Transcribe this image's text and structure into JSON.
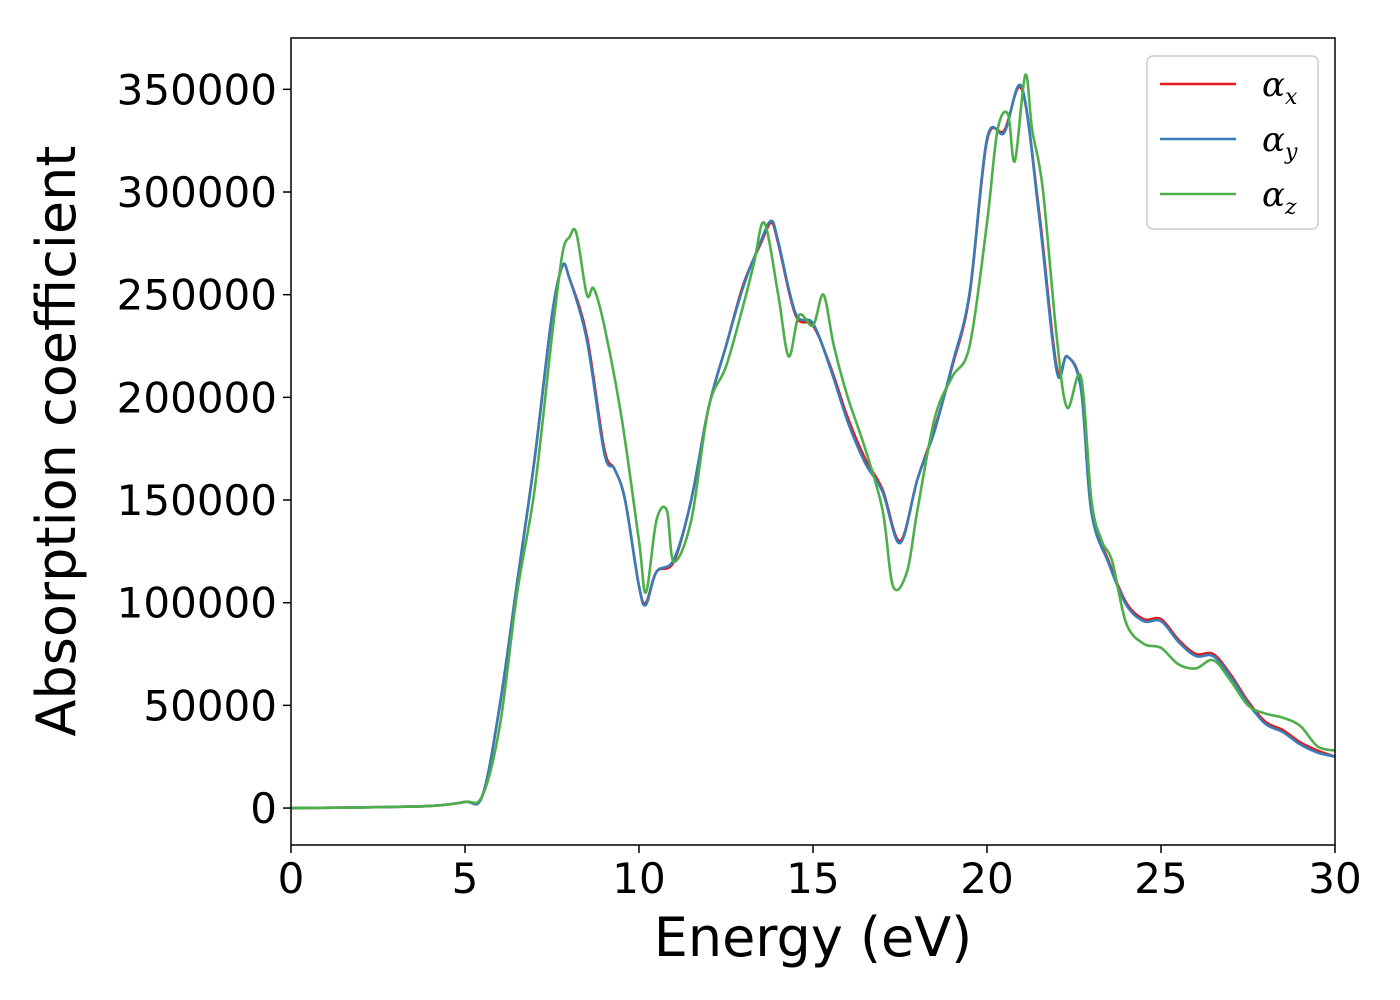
{
  "chart_data": {
    "type": "line",
    "xlabel": "Energy (eV)",
    "ylabel": "Absorption coefficient",
    "xlim": [
      0,
      30
    ],
    "ylim": [
      -18000,
      375000
    ],
    "xticks": [
      0,
      5,
      10,
      15,
      20,
      25,
      30
    ],
    "yticks": [
      0,
      50000,
      100000,
      150000,
      200000,
      250000,
      300000,
      350000
    ],
    "grid": false,
    "legend_position": "top-right",
    "series": [
      {
        "name": "α_x",
        "symbol": "α",
        "subscript": "x",
        "color": "#e41a1c",
        "x": [
          0,
          2,
          4,
          5,
          5.5,
          6,
          6.5,
          7,
          7.5,
          7.8,
          8,
          8.5,
          9,
          9.3,
          9.6,
          10,
          10.2,
          10.5,
          11,
          11.5,
          12,
          12.5,
          13,
          13.5,
          13.8,
          14,
          14.5,
          15,
          15.5,
          16,
          16.5,
          17,
          17.5,
          18,
          18.5,
          19,
          19.5,
          20,
          20.5,
          21,
          21.5,
          22,
          22.3,
          22.7,
          23,
          23.5,
          24,
          24.5,
          25,
          25.5,
          26,
          26.5,
          27,
          27.5,
          28,
          28.5,
          29,
          29.5,
          30
        ],
        "y": [
          0,
          300,
          1000,
          3000,
          6000,
          50000,
          110000,
          170000,
          240000,
          264000,
          258000,
          230000,
          175000,
          165000,
          150000,
          108000,
          100000,
          115000,
          120000,
          150000,
          195000,
          225000,
          255000,
          275000,
          285000,
          275000,
          240000,
          235000,
          215000,
          190000,
          170000,
          155000,
          130000,
          160000,
          185000,
          215000,
          250000,
          325000,
          330000,
          350000,
          290000,
          215000,
          220000,
          205000,
          145000,
          120000,
          100000,
          92000,
          92000,
          82000,
          75000,
          75000,
          65000,
          52000,
          42000,
          38000,
          32000,
          28000,
          25000
        ]
      },
      {
        "name": "α_y",
        "symbol": "α",
        "subscript": "y",
        "color": "#377eb8",
        "x": [
          0,
          2,
          4,
          5,
          5.5,
          6,
          6.5,
          7,
          7.5,
          7.8,
          8,
          8.5,
          9,
          9.3,
          9.6,
          10,
          10.2,
          10.5,
          11,
          11.5,
          12,
          12.5,
          13,
          13.5,
          13.8,
          14,
          14.5,
          15,
          15.5,
          16,
          16.5,
          17,
          17.5,
          18,
          18.5,
          19,
          19.5,
          20,
          20.5,
          21,
          21.5,
          22,
          22.3,
          22.7,
          23,
          23.5,
          24,
          24.5,
          25,
          25.5,
          26,
          26.5,
          27,
          27.5,
          28,
          28.5,
          29,
          29.5,
          30
        ],
        "y": [
          0,
          300,
          1000,
          3000,
          6000,
          50000,
          110000,
          170000,
          240000,
          264000,
          258000,
          228000,
          173000,
          165000,
          150000,
          108000,
          99000,
          115000,
          121000,
          150000,
          195000,
          225000,
          254000,
          276000,
          286000,
          276000,
          241000,
          236000,
          214000,
          188000,
          168000,
          154000,
          129000,
          160000,
          184000,
          216000,
          251000,
          326000,
          329000,
          351000,
          288000,
          213000,
          220000,
          204000,
          144000,
          119000,
          99000,
          91000,
          91000,
          81000,
          74000,
          74000,
          64000,
          51000,
          41000,
          37000,
          31000,
          27000,
          25000
        ]
      },
      {
        "name": "α_z",
        "symbol": "α",
        "subscript": "z",
        "color": "#4daf4a",
        "x": [
          0,
          2,
          4,
          5,
          5.5,
          6,
          6.5,
          7,
          7.5,
          7.8,
          8,
          8.2,
          8.5,
          8.7,
          9,
          9.5,
          10,
          10.2,
          10.5,
          10.8,
          11,
          11.5,
          12,
          12.5,
          13,
          13.3,
          13.6,
          14,
          14.3,
          14.6,
          15,
          15.3,
          15.6,
          16,
          16.5,
          17,
          17.3,
          17.7,
          18,
          18.5,
          19,
          19.5,
          20,
          20.3,
          20.6,
          20.8,
          21.1,
          21.3,
          21.6,
          22,
          22.3,
          22.7,
          23,
          23.3,
          23.6,
          24,
          24.5,
          25,
          25.5,
          26,
          26.5,
          27,
          27.5,
          28,
          28.5,
          29,
          29.5,
          30
        ],
        "y": [
          0,
          300,
          1000,
          3000,
          6000,
          40000,
          105000,
          155000,
          230000,
          270000,
          278000,
          280000,
          250000,
          253000,
          235000,
          190000,
          130000,
          105000,
          140000,
          145000,
          120000,
          140000,
          195000,
          215000,
          245000,
          265000,
          285000,
          250000,
          220000,
          240000,
          235000,
          250000,
          225000,
          200000,
          175000,
          145000,
          108000,
          115000,
          145000,
          190000,
          210000,
          225000,
          285000,
          330000,
          338000,
          315000,
          357000,
          330000,
          302000,
          230000,
          195000,
          210000,
          150000,
          130000,
          120000,
          90000,
          80000,
          78000,
          70000,
          68000,
          72000,
          62000,
          50000,
          46000,
          44000,
          40000,
          30000,
          28000
        ]
      }
    ]
  }
}
